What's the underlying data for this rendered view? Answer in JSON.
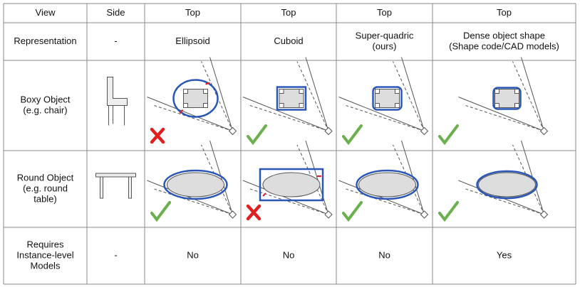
{
  "table": {
    "header": [
      "View",
      "Side",
      "Top",
      "Top",
      "Top",
      "Top"
    ],
    "rows": [
      {
        "label": [
          "Representation"
        ],
        "side": "-",
        "top": [
          [
            "Ellipsoid"
          ],
          [
            "Cuboid"
          ],
          [
            "Super-quadric",
            "(ours)"
          ],
          [
            "Dense object shape",
            "(Shape code/CAD models)"
          ]
        ]
      },
      {
        "label": [
          "Boxy Object",
          "(e.g. chair)"
        ]
      },
      {
        "label": [
          "Round Object",
          "(e.g. round",
          "table)"
        ]
      },
      {
        "label": [
          "Requires",
          "Instance-level",
          "Models"
        ],
        "side": "-",
        "top": [
          [
            "No"
          ],
          [
            "No"
          ],
          [
            "No"
          ],
          [
            "Yes"
          ]
        ]
      }
    ]
  }
}
